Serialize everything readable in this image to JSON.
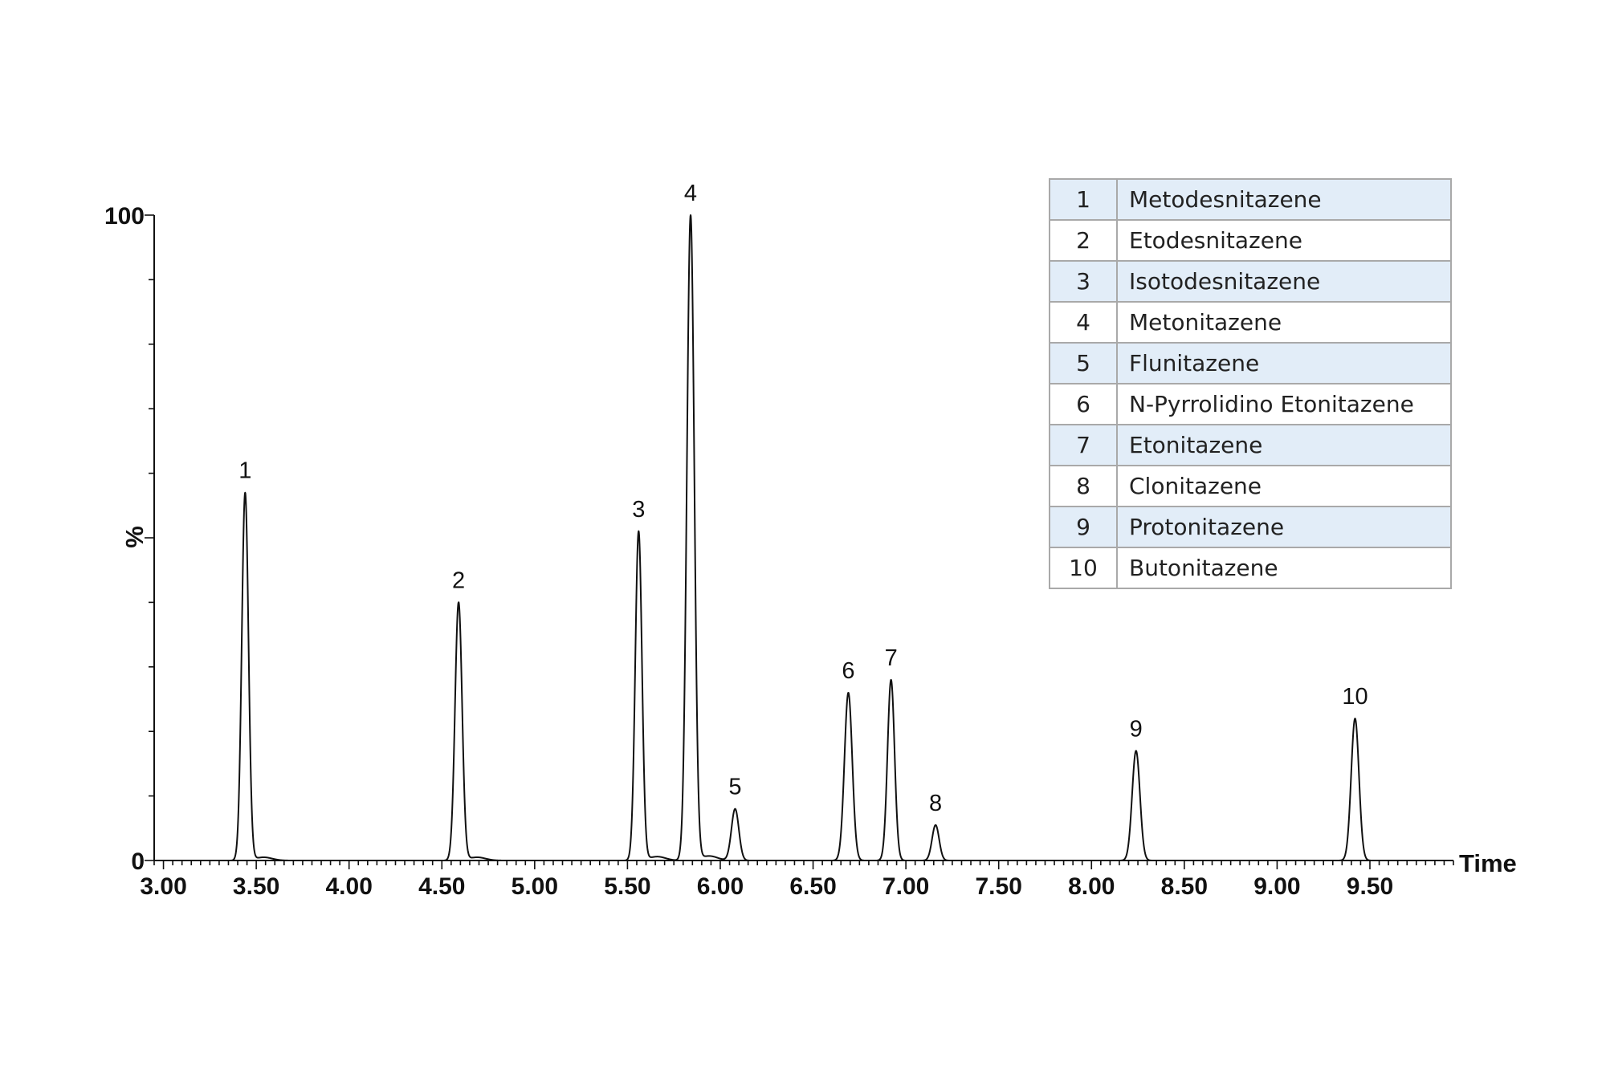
{
  "chart_data": {
    "type": "line",
    "title": "",
    "xlabel": "Time",
    "ylabel": "%",
    "xlim": [
      2.95,
      9.95
    ],
    "ylim": [
      0,
      100
    ],
    "x_ticks": [
      "3.00",
      "3.50",
      "4.00",
      "4.50",
      "5.00",
      "5.50",
      "6.00",
      "6.50",
      "7.00",
      "7.50",
      "8.00",
      "8.50",
      "9.00",
      "9.50"
    ],
    "y_ticks": [
      "0",
      "100"
    ],
    "grid": false,
    "peaks": [
      {
        "label": "1",
        "time": 3.44,
        "height": 57,
        "width": 0.018,
        "tail": 0.5
      },
      {
        "label": "2",
        "time": 4.59,
        "height": 40,
        "width": 0.019,
        "tail": 0.5
      },
      {
        "label": "3",
        "time": 5.56,
        "height": 51,
        "width": 0.018,
        "tail": 0.6
      },
      {
        "label": "4",
        "time": 5.84,
        "height": 100,
        "width": 0.02,
        "tail": 0.7
      },
      {
        "label": "5",
        "time": 6.08,
        "height": 8,
        "width": 0.02,
        "tail": 0
      },
      {
        "label": "6",
        "time": 6.69,
        "height": 26,
        "width": 0.021,
        "tail": 0
      },
      {
        "label": "7",
        "time": 6.92,
        "height": 28,
        "width": 0.019,
        "tail": 0
      },
      {
        "label": "8",
        "time": 7.16,
        "height": 5.5,
        "width": 0.019,
        "tail": 0
      },
      {
        "label": "9",
        "time": 8.24,
        "height": 17,
        "width": 0.021,
        "tail": 0
      },
      {
        "label": "10",
        "time": 9.42,
        "height": 22,
        "width": 0.021,
        "tail": 0
      }
    ],
    "legend_title": "",
    "legend_position": "top-right"
  },
  "legend": [
    {
      "num": "1",
      "name": "Metodesnitazene"
    },
    {
      "num": "2",
      "name": "Etodesnitazene"
    },
    {
      "num": "3",
      "name": "Isotodesnitazene"
    },
    {
      "num": "4",
      "name": "Metonitazene"
    },
    {
      "num": "5",
      "name": "Flunitazene"
    },
    {
      "num": "6",
      "name": "N-Pyrrolidino Etonitazene"
    },
    {
      "num": "7",
      "name": "Etonitazene"
    },
    {
      "num": "8",
      "name": "Clonitazene"
    },
    {
      "num": "9",
      "name": "Protonitazene"
    },
    {
      "num": "10",
      "name": "Butonitazene"
    }
  ],
  "colors": {
    "trace": "#111111",
    "legend_shade": "#e2edf8",
    "legend_border": "#a9a9a9"
  }
}
